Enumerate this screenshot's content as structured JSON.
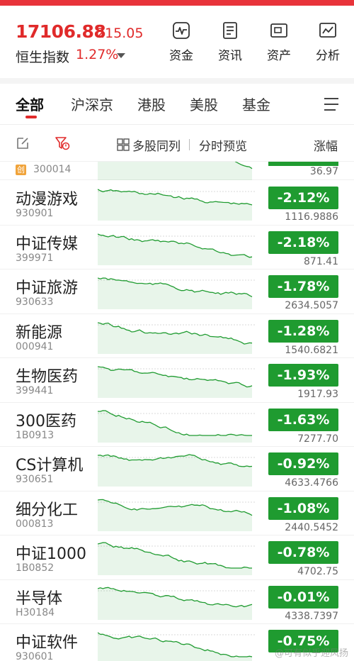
{
  "header": {
    "index_value": "17106.88",
    "index_change": "215.05",
    "index_name": "恒生指数",
    "index_pct": "1.27%",
    "buttons": [
      {
        "label": "资金",
        "icon": "pulse-chart-icon"
      },
      {
        "label": "资讯",
        "icon": "document-icon"
      },
      {
        "label": "资产",
        "icon": "wallet-icon"
      },
      {
        "label": "分析",
        "icon": "line-chart-icon"
      }
    ]
  },
  "tabs": [
    "全部",
    "沪深京",
    "港股",
    "美股",
    "基金"
  ],
  "active_tab": "全部",
  "toolbar": {
    "multi_label": "多股同列",
    "preview_label": "分时预览",
    "change_label": "涨幅"
  },
  "colors": {
    "rise": "#e02a2a",
    "fall": "#1f9b30",
    "accent": "#e8333a"
  },
  "partial_row": {
    "badge": "创",
    "code": "300014",
    "price": "36.97"
  },
  "rows": [
    {
      "name": "动漫游戏",
      "code": "930901",
      "pct": "-2.12%",
      "price": "1116.9886"
    },
    {
      "name": "中证传媒",
      "code": "399971",
      "pct": "-2.18%",
      "price": "871.41"
    },
    {
      "name": "中证旅游",
      "code": "930633",
      "pct": "-1.78%",
      "price": "2634.5057"
    },
    {
      "name": "新能源",
      "code": "000941",
      "pct": "-1.28%",
      "price": "1540.6821"
    },
    {
      "name": "生物医药",
      "code": "399441",
      "pct": "-1.93%",
      "price": "1917.93"
    },
    {
      "name": "300医药",
      "code": "1B0913",
      "pct": "-1.63%",
      "price": "7277.70"
    },
    {
      "name": "CS计算机",
      "code": "930651",
      "pct": "-0.92%",
      "price": "4633.4766"
    },
    {
      "name": "细分化工",
      "code": "000813",
      "pct": "-1.08%",
      "price": "2440.5452"
    },
    {
      "name": "中证1000",
      "code": "1B0852",
      "pct": "-0.78%",
      "price": "4702.75"
    },
    {
      "name": "半导体",
      "code": "H30184",
      "pct": "-0.01%",
      "price": "4338.7397"
    },
    {
      "name": "中证软件",
      "code": "930601",
      "pct": "-0.75%",
      "price": ""
    }
  ],
  "watermark": "@可有似乎迎风扬"
}
